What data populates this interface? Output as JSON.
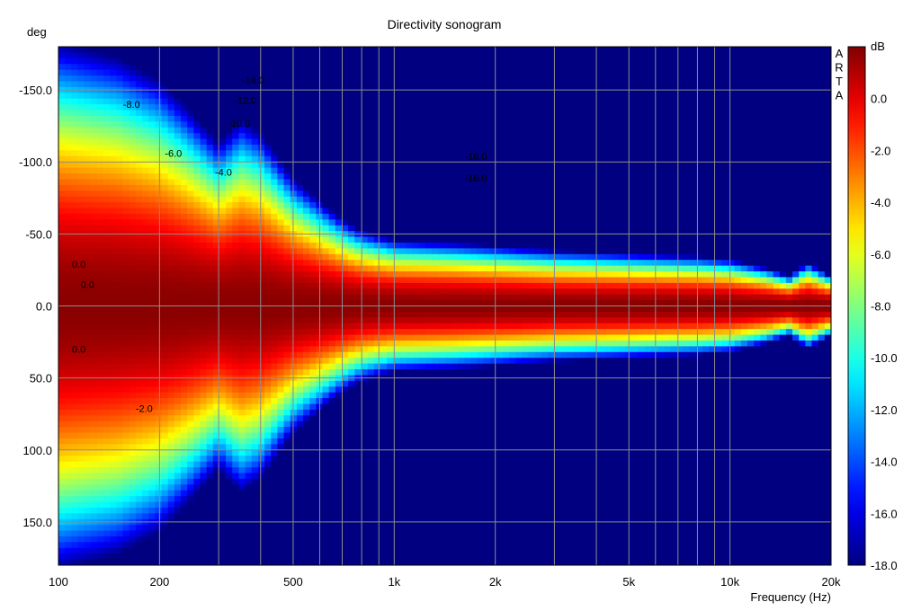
{
  "chart_data": {
    "type": "heatmap",
    "title": "Directivity sonogram",
    "xlabel": "Frequency (Hz)",
    "ylabel": "deg",
    "x_scale": "log",
    "xlim": [
      100,
      20000
    ],
    "ylim": [
      -180,
      180
    ],
    "x_ticks": [
      {
        "value": 100,
        "label": "100"
      },
      {
        "value": 200,
        "label": "200"
      },
      {
        "value": 500,
        "label": "500"
      },
      {
        "value": 1000,
        "label": "1k"
      },
      {
        "value": 2000,
        "label": "2k"
      },
      {
        "value": 5000,
        "label": "5k"
      },
      {
        "value": 10000,
        "label": "10k"
      },
      {
        "value": 20000,
        "label": "20k"
      }
    ],
    "y_ticks": [
      {
        "value": -150,
        "label": "-150.0"
      },
      {
        "value": -100,
        "label": "-100.0"
      },
      {
        "value": -50,
        "label": "-50.0"
      },
      {
        "value": 0,
        "label": "0.0"
      },
      {
        "value": 50,
        "label": "50.0"
      },
      {
        "value": 100,
        "label": "100.0"
      },
      {
        "value": 150,
        "label": "150.0"
      }
    ],
    "grid": true,
    "colorbar": {
      "label": "dB",
      "range": [
        -18,
        2
      ],
      "ticks": [
        {
          "value": 0,
          "label": "0.0"
        },
        {
          "value": -2,
          "label": "-2.0"
        },
        {
          "value": -4,
          "label": "-4.0"
        },
        {
          "value": -6,
          "label": "-6.0"
        },
        {
          "value": -8,
          "label": "-8.0"
        },
        {
          "value": -10,
          "label": "-10.0"
        },
        {
          "value": -12,
          "label": "-12.0"
        },
        {
          "value": -14,
          "label": "-14.0"
        },
        {
          "value": -16,
          "label": "-16.0"
        },
        {
          "value": -18,
          "label": "-18.0"
        }
      ]
    },
    "beamwidth_profile": {
      "freq": [
        100,
        150,
        200,
        250,
        300,
        350,
        400,
        500,
        600,
        700,
        800,
        1000,
        1500,
        2000,
        3000,
        5000,
        8000,
        10000,
        13000,
        15000,
        17000,
        20000
      ],
      "spread_deg": [
        175,
        165,
        150,
        128,
        108,
        124,
        115,
        85,
        70,
        58,
        50,
        44,
        42,
        40,
        37,
        35,
        33,
        31,
        25,
        20,
        29,
        20
      ]
    },
    "floor_db": -18,
    "contour_labels": [
      {
        "text": "-8.0",
        "freq": 165,
        "deg": -140
      },
      {
        "text": "-14.0",
        "freq": 380,
        "deg": -157
      },
      {
        "text": "-12.0",
        "freq": 360,
        "deg": -143
      },
      {
        "text": "-10.0",
        "freq": 345,
        "deg": -127
      },
      {
        "text": "-6.0",
        "freq": 220,
        "deg": -106
      },
      {
        "text": "-4.0",
        "freq": 310,
        "deg": -93
      },
      {
        "text": "-16.0",
        "freq": 1750,
        "deg": -104
      },
      {
        "text": "-16.0",
        "freq": 1750,
        "deg": -89
      },
      {
        "text": "0.0",
        "freq": 115,
        "deg": -29
      },
      {
        "text": "0.0",
        "freq": 122,
        "deg": -15
      },
      {
        "text": "0.0",
        "freq": 115,
        "deg": 30
      },
      {
        "text": "-2.0",
        "freq": 180,
        "deg": 71
      }
    ],
    "watermark": "ARTA"
  }
}
